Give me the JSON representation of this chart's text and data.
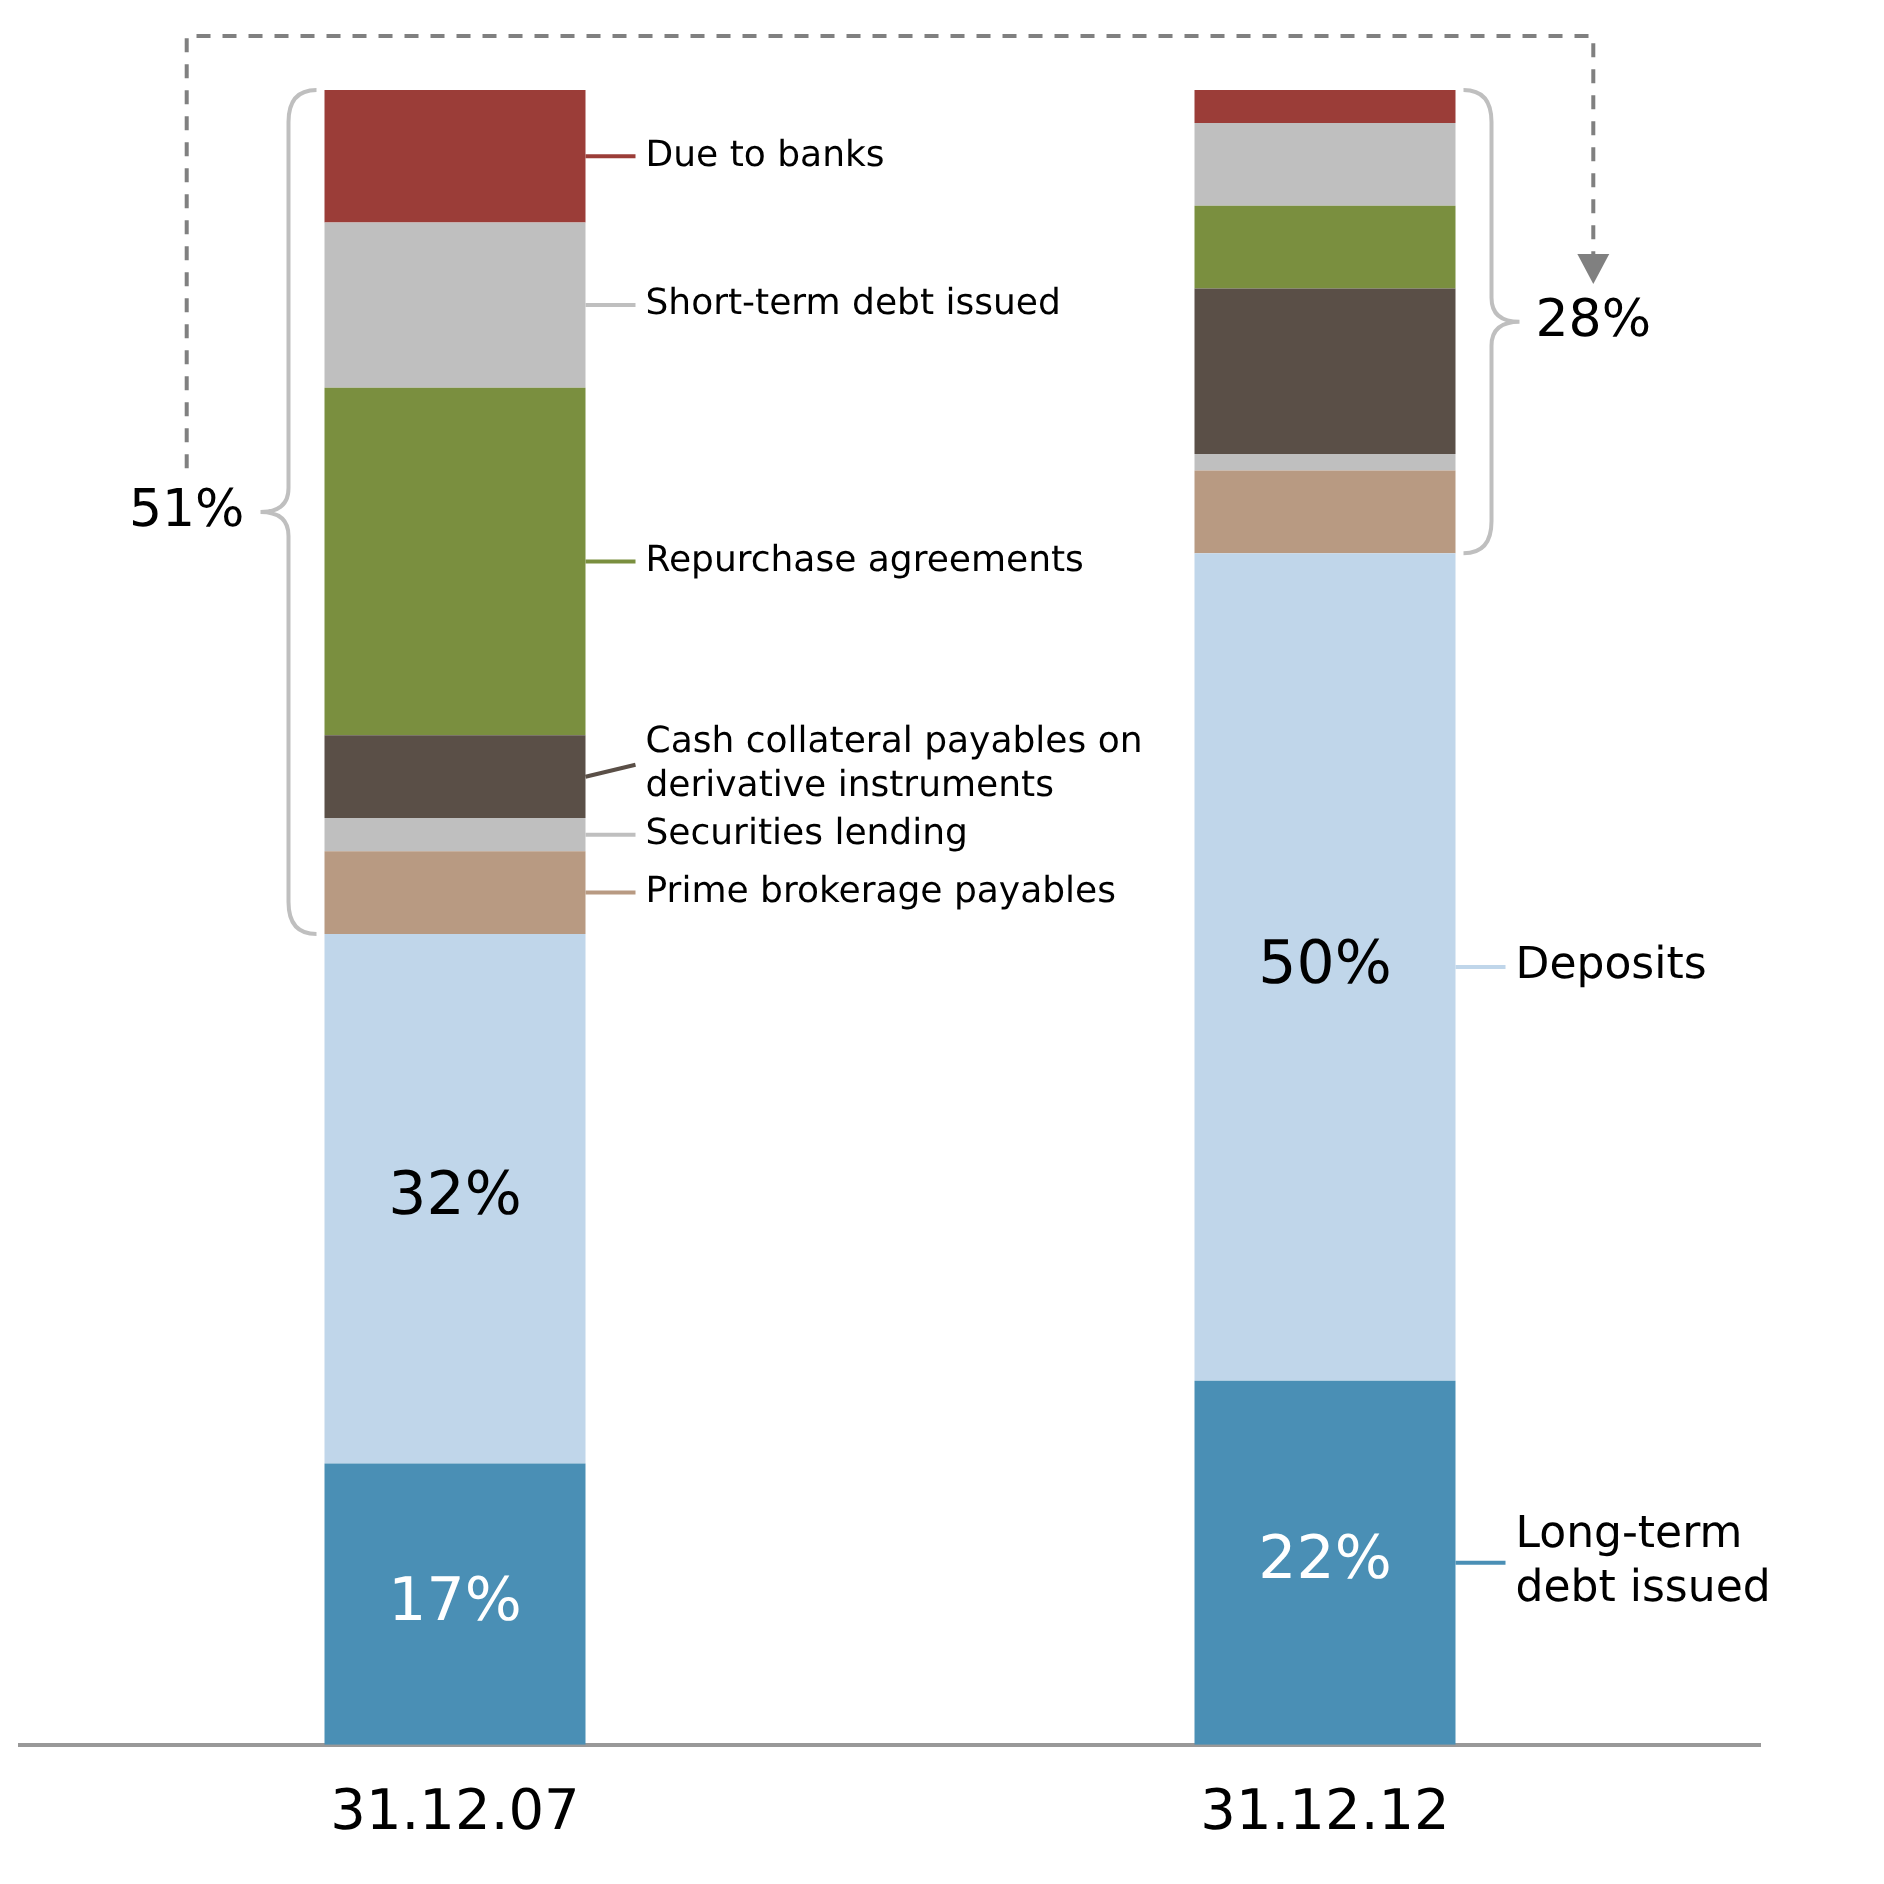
{
  "chart_data": {
    "type": "bar",
    "stacked": true,
    "legend": "right",
    "grid": false,
    "tick_labels": "x",
    "categories": [
      "31.12.07",
      "31.12.12"
    ],
    "ylim": [
      0,
      100
    ],
    "series": [
      {
        "name": "Long-term debt issued",
        "color": "#4a8fb5",
        "values": [
          17,
          22
        ],
        "value_labels": [
          "17%",
          "22%"
        ]
      },
      {
        "name": "Deposits",
        "color": "#c0d6ea",
        "values": [
          32,
          50
        ],
        "value_labels": [
          "32%",
          "50%"
        ]
      },
      {
        "name": "Prime brokerage payables",
        "color": "#b89a82",
        "values": [
          5,
          5
        ]
      },
      {
        "name": "Securities lending",
        "color": "#bfbfbf",
        "values": [
          2,
          1
        ]
      },
      {
        "name": "Cash collateral payables on derivative instruments",
        "color": "#5a4f47",
        "values": [
          5,
          10
        ]
      },
      {
        "name": "Repurchase agreements",
        "color": "#7a8f3f",
        "values": [
          21,
          5
        ]
      },
      {
        "name": "Short-term debt issued",
        "color": "#bfbfbf",
        "values": [
          10,
          5
        ]
      },
      {
        "name": "Due to banks",
        "color": "#9b3d38",
        "values": [
          8,
          2
        ]
      }
    ],
    "annotations": [
      "51%",
      "28%"
    ]
  }
}
